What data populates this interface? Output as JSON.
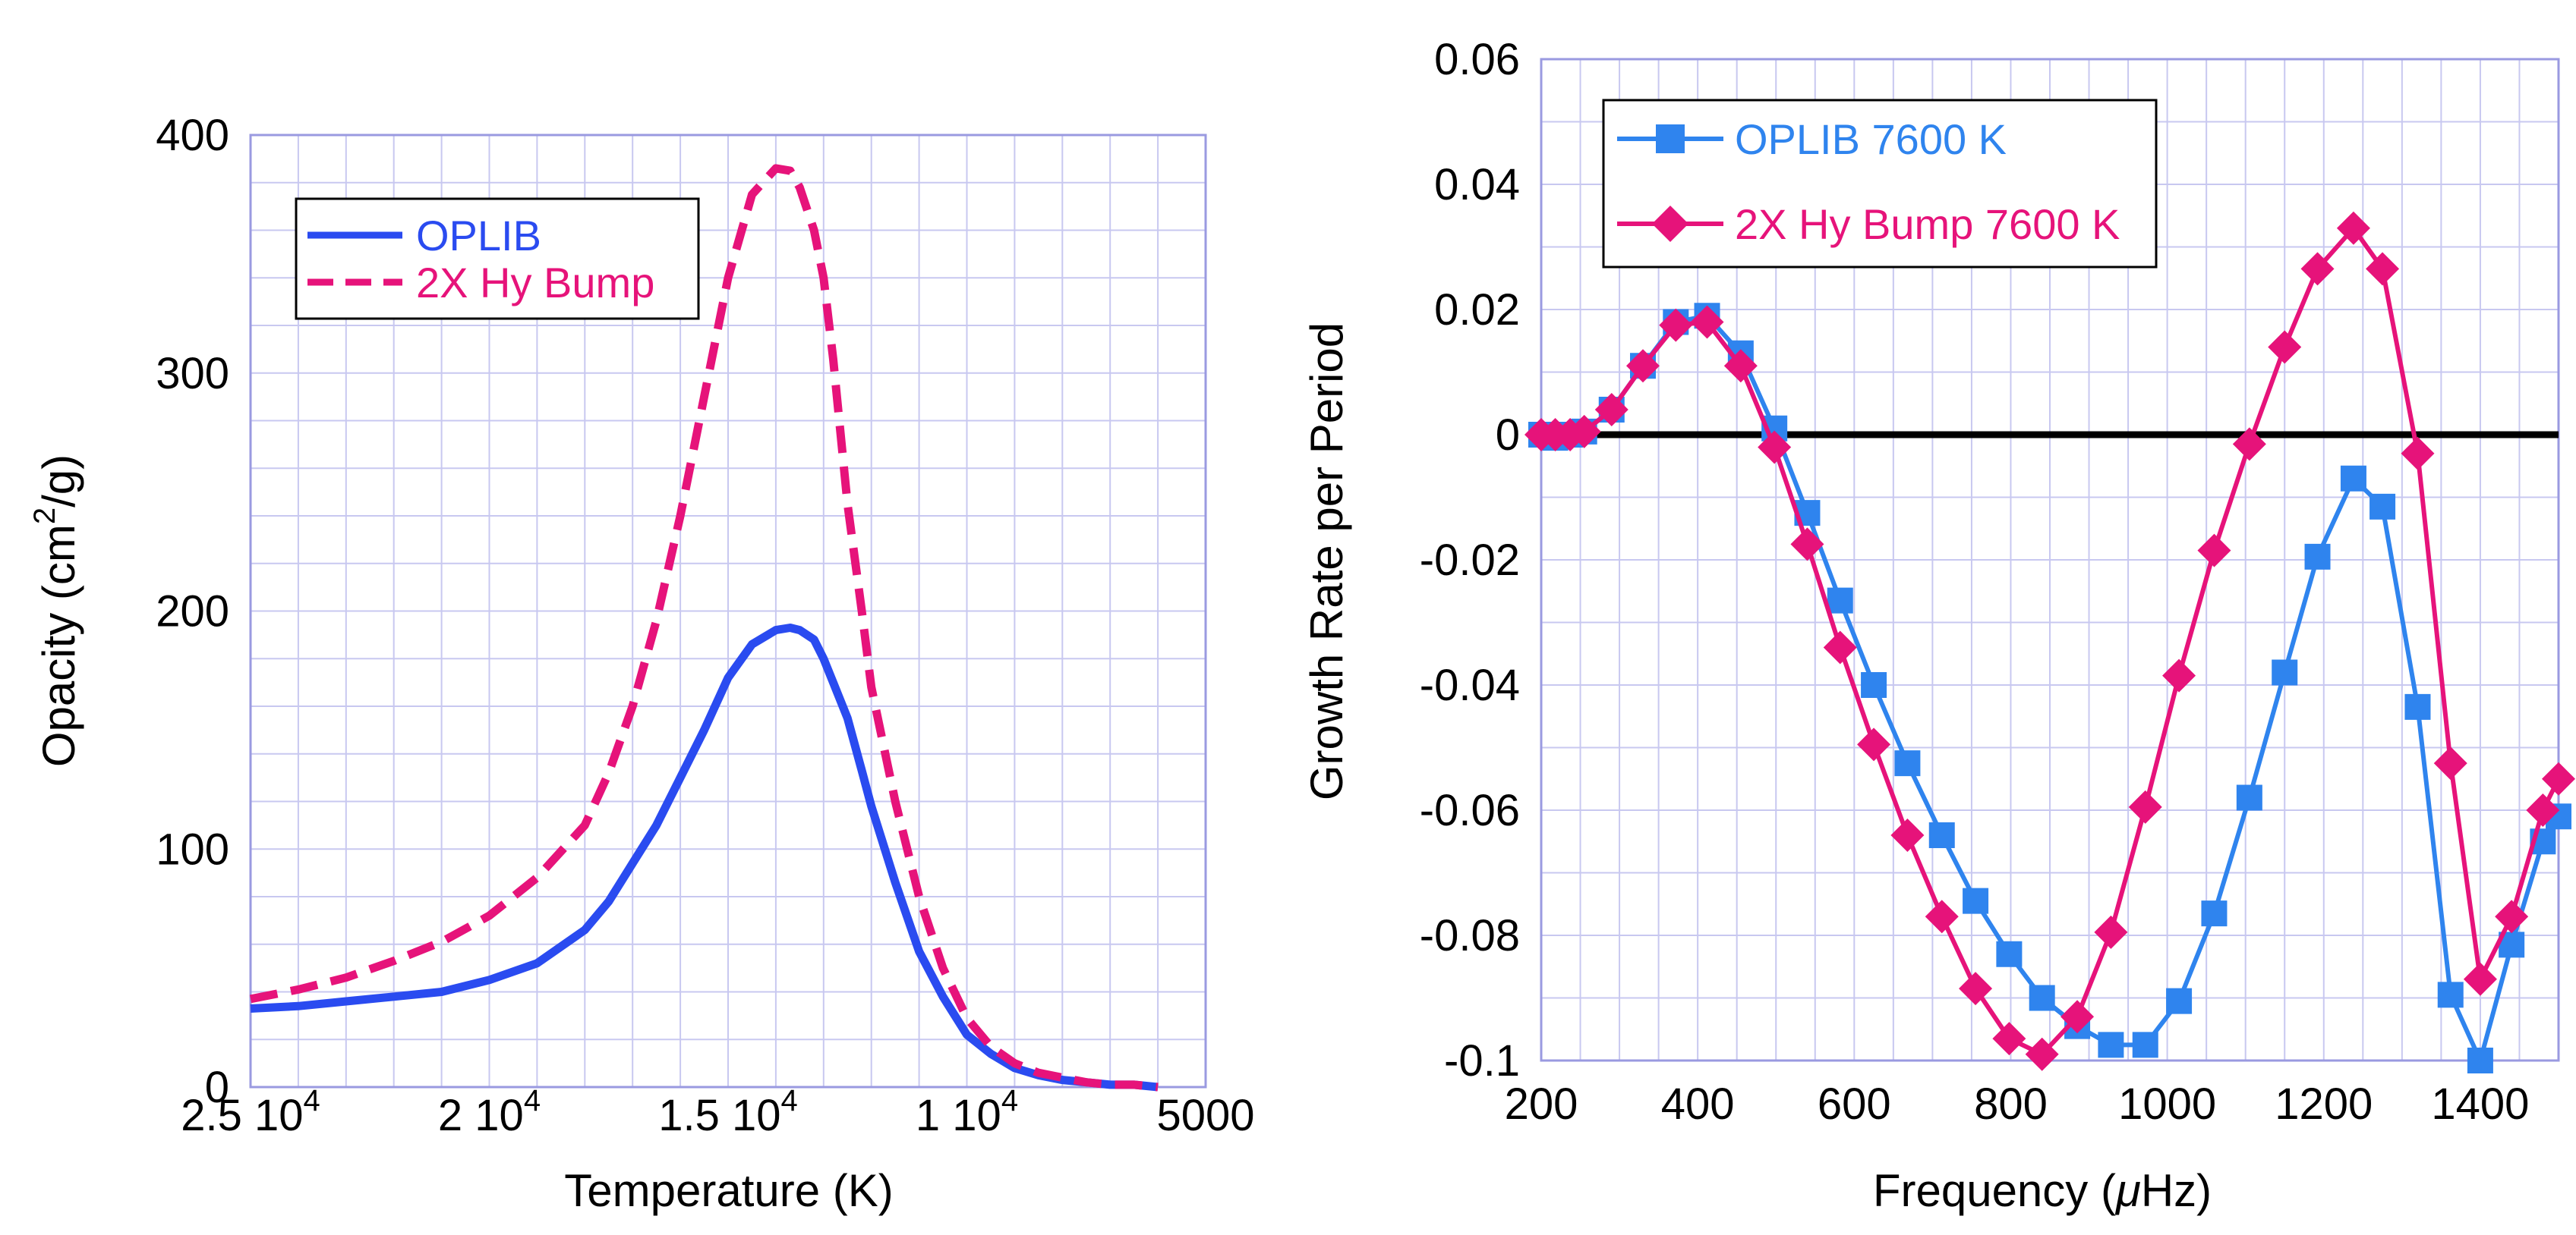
{
  "chart_data": [
    {
      "type": "line",
      "xlabel": "Temperature (K)",
      "ylabel_parts": {
        "pre": "Opacity (cm",
        "sup": "2",
        "post": "/g)"
      },
      "x_scale": "linear-reversed",
      "xlim": [
        25000,
        5000
      ],
      "ylim": [
        0,
        400
      ],
      "x_ticks": [
        {
          "value": 25000,
          "label": "2.5 10",
          "exp": "4"
        },
        {
          "value": 20000,
          "label": "2 10",
          "exp": "4"
        },
        {
          "value": 15000,
          "label": "1.5 10",
          "exp": "4"
        },
        {
          "value": 10000,
          "label": "1 10",
          "exp": "4"
        },
        {
          "value": 5000,
          "label": "5000",
          "exp": ""
        }
      ],
      "y_ticks": [
        0,
        100,
        200,
        300,
        400
      ],
      "grid": true,
      "legend_position": "top-left",
      "series": [
        {
          "name": "OPLIB",
          "color": "#2a4bf0",
          "style": "solid",
          "x": [
            25000,
            24000,
            23000,
            22000,
            21000,
            20000,
            19000,
            18000,
            17500,
            17000,
            16500,
            16000,
            15500,
            15000,
            14500,
            14000,
            13700,
            13500,
            13200,
            13000,
            12800,
            12500,
            12200,
            12000,
            11500,
            11000,
            10500,
            10000,
            9500,
            9000,
            8500,
            8000,
            7500,
            7000,
            6500,
            6000
          ],
          "y": [
            33,
            34,
            36,
            38,
            40,
            45,
            52,
            66,
            78,
            94,
            110,
            130,
            150,
            172,
            186,
            192,
            193,
            192,
            188,
            180,
            170,
            155,
            133,
            118,
            86,
            57,
            38,
            22,
            14,
            8,
            5,
            3,
            2,
            1,
            1,
            0
          ]
        },
        {
          "name": "2X Hy Bump",
          "color": "#e6137a",
          "style": "dashed",
          "x": [
            25000,
            24000,
            23000,
            22000,
            21000,
            20000,
            19000,
            18000,
            17500,
            17000,
            16500,
            16000,
            15500,
            15000,
            14500,
            14000,
            13700,
            13500,
            13200,
            13000,
            12800,
            12500,
            12200,
            12000,
            11500,
            11000,
            10500,
            10000,
            9500,
            9000,
            8500,
            8000,
            7500,
            7000,
            6500,
            6000
          ],
          "y": [
            37,
            41,
            46,
            53,
            61,
            72,
            88,
            110,
            132,
            160,
            196,
            240,
            290,
            340,
            375,
            386,
            385,
            378,
            360,
            340,
            306,
            245,
            200,
            168,
            120,
            80,
            50,
            29,
            17,
            10,
            6,
            4,
            2,
            1,
            1,
            0
          ]
        }
      ]
    },
    {
      "type": "line",
      "xlabel_parts": {
        "pre": "Frequency (",
        "mu": "μ",
        "post": "Hz)"
      },
      "ylabel": "Growth Rate per Period",
      "xlim": [
        200,
        1500
      ],
      "ylim": [
        -0.1,
        0.06
      ],
      "x_ticks": [
        200,
        400,
        600,
        800,
        1000,
        1200,
        1400
      ],
      "y_ticks": [
        {
          "value": 0.06,
          "label": "0.06"
        },
        {
          "value": 0.04,
          "label": "0.04"
        },
        {
          "value": 0.02,
          "label": "0.02"
        },
        {
          "value": 0,
          "label": "0"
        },
        {
          "value": -0.02,
          "label": "-0.02"
        },
        {
          "value": -0.04,
          "label": "-0.04"
        },
        {
          "value": -0.06,
          "label": "-0.06"
        },
        {
          "value": -0.08,
          "label": "-0.08"
        },
        {
          "value": -0.1,
          "label": "-0.1"
        }
      ],
      "zero_line": true,
      "grid": true,
      "legend_position": "top-left",
      "series": [
        {
          "name": "OPLIB 7600 K",
          "color": "#2f84ee",
          "marker": "square",
          "x": [
            200,
            218,
            237,
            255,
            290,
            330,
            372,
            412,
            455,
            498,
            540,
            582,
            625,
            668,
            712,
            755,
            798,
            840,
            885,
            928,
            972,
            1015,
            1060,
            1105,
            1150,
            1192,
            1238,
            1275,
            1320,
            1362,
            1400,
            1440,
            1480,
            1500
          ],
          "y": [
            0,
            -0.0005,
            0,
            0.0005,
            0.004,
            0.011,
            0.018,
            0.019,
            0.013,
            0.001,
            -0.0125,
            -0.0265,
            -0.04,
            -0.0525,
            -0.064,
            -0.0745,
            -0.083,
            -0.09,
            -0.0945,
            -0.0975,
            -0.0975,
            -0.0905,
            -0.0765,
            -0.058,
            -0.038,
            -0.0195,
            -0.007,
            -0.0115,
            -0.0435,
            -0.0895,
            -0.1,
            -0.0815,
            -0.065,
            -0.061
          ]
        },
        {
          "name": "2X Hy Bump 7600 K",
          "color": "#e6137a",
          "marker": "diamond",
          "x": [
            200,
            218,
            237,
            255,
            290,
            330,
            372,
            412,
            455,
            498,
            540,
            582,
            625,
            668,
            712,
            755,
            798,
            840,
            885,
            928,
            972,
            1015,
            1060,
            1105,
            1150,
            1192,
            1238,
            1275,
            1320,
            1362,
            1400,
            1440,
            1480,
            1500
          ],
          "y": [
            0,
            0,
            0,
            0.0005,
            0.004,
            0.011,
            0.0175,
            0.018,
            0.011,
            -0.002,
            -0.0175,
            -0.034,
            -0.0495,
            -0.064,
            -0.077,
            -0.0885,
            -0.0965,
            -0.099,
            -0.093,
            -0.0795,
            -0.0595,
            -0.0385,
            -0.0185,
            -0.0015,
            0.014,
            0.0265,
            0.033,
            0.0265,
            -0.003,
            -0.0525,
            -0.087,
            -0.077,
            -0.06,
            -0.055
          ]
        }
      ]
    }
  ]
}
